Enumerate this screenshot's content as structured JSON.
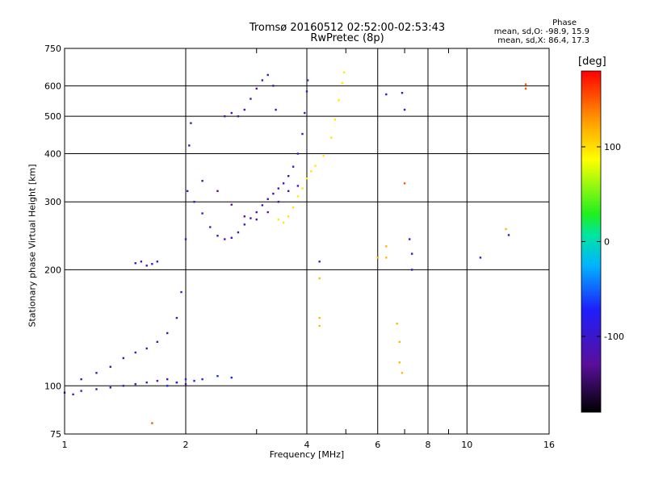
{
  "title": {
    "line1": "Tromsø 20160512 02:52:00-02:53:43",
    "line2": "RwPretec (8p)"
  },
  "phase_stats": {
    "heading": "Phase",
    "o_line": "mean, sd,O: -98.9, 15.9",
    "x_line": "mean, sd,X:  86.4, 17.3"
  },
  "chart_data": {
    "type": "scatter",
    "xlabel": "Frequency [MHz]",
    "ylabel": "Stationary phase Virtual Height [km]",
    "xscale": "log",
    "yscale": "log",
    "xlim": [
      1,
      16
    ],
    "ylim": [
      75,
      750
    ],
    "x_ticks": [
      1,
      2,
      4,
      6,
      8,
      10,
      16
    ],
    "x_tick_labels": [
      "1",
      "2",
      "4",
      "6",
      "8",
      "10",
      "16"
    ],
    "x_minor_ticks": [
      3,
      5,
      7,
      9
    ],
    "y_ticks": [
      75,
      100,
      200,
      300,
      400,
      500,
      600,
      750
    ],
    "y_tick_labels": [
      "75",
      "100",
      "200",
      "300",
      "400",
      "500",
      "600",
      "750"
    ],
    "grid": true,
    "colorbar": {
      "unit": "[deg]",
      "range": [
        -180,
        180
      ],
      "ticks": [
        100,
        0,
        -100
      ],
      "tick_labels": [
        "100",
        "0",
        "-100"
      ]
    },
    "traces": [
      {
        "name": "",
        "points": [
          [
            1.0,
            96
          ],
          [
            1.05,
            95
          ],
          [
            1.1,
            97
          ],
          [
            1.2,
            98
          ],
          [
            1.3,
            99
          ],
          [
            1.4,
            100
          ],
          [
            1.5,
            101
          ],
          [
            1.6,
            102
          ],
          [
            1.7,
            103
          ],
          [
            1.8,
            104
          ],
          [
            1.9,
            102
          ],
          [
            2.0,
            101
          ]
        ],
        "phase": -115
      },
      {
        "name": "",
        "points": [
          [
            1.1,
            104
          ],
          [
            1.2,
            108
          ],
          [
            1.3,
            112
          ],
          [
            1.4,
            118
          ],
          [
            1.5,
            122
          ],
          [
            1.6,
            125
          ],
          [
            1.7,
            130
          ],
          [
            1.8,
            137
          ],
          [
            1.9,
            150
          ],
          [
            1.95,
            175
          ],
          [
            2.0,
            240
          ],
          [
            2.02,
            320
          ],
          [
            2.04,
            420
          ],
          [
            2.06,
            480
          ]
        ],
        "phase": -110
      },
      {
        "name": "",
        "points": [
          [
            2.1,
            300
          ],
          [
            2.2,
            280
          ],
          [
            2.3,
            258
          ],
          [
            2.4,
            245
          ],
          [
            2.5,
            240
          ],
          [
            2.6,
            242
          ],
          [
            2.7,
            250
          ],
          [
            2.8,
            262
          ],
          [
            2.9,
            272
          ],
          [
            3.0,
            282
          ],
          [
            3.1,
            294
          ],
          [
            3.2,
            305
          ],
          [
            3.3,
            315
          ],
          [
            3.4,
            325
          ],
          [
            3.5,
            335
          ],
          [
            3.6,
            350
          ],
          [
            3.7,
            370
          ],
          [
            3.8,
            400
          ],
          [
            3.9,
            450
          ],
          [
            3.95,
            510
          ],
          [
            4.0,
            580
          ],
          [
            4.02,
            620
          ]
        ],
        "phase": -110
      },
      {
        "name": "",
        "points": [
          [
            2.2,
            340
          ],
          [
            2.4,
            320
          ],
          [
            2.6,
            295
          ],
          [
            2.8,
            275
          ],
          [
            3.0,
            270
          ],
          [
            3.2,
            282
          ],
          [
            3.4,
            300
          ],
          [
            3.6,
            320
          ],
          [
            3.8,
            330
          ]
        ],
        "phase": -125
      },
      {
        "name": "",
        "points": [
          [
            2.5,
            500
          ],
          [
            2.6,
            510
          ],
          [
            2.7,
            500
          ],
          [
            2.8,
            520
          ],
          [
            2.9,
            555
          ],
          [
            3.0,
            590
          ],
          [
            3.1,
            620
          ],
          [
            3.2,
            640
          ],
          [
            3.3,
            600
          ],
          [
            3.35,
            520
          ]
        ],
        "phase": -115
      },
      {
        "name": "",
        "points": [
          [
            3.4,
            270
          ],
          [
            3.5,
            265
          ],
          [
            3.6,
            275
          ],
          [
            3.7,
            290
          ],
          [
            3.8,
            310
          ],
          [
            3.9,
            325
          ],
          [
            4.0,
            345
          ],
          [
            4.1,
            360
          ],
          [
            4.2,
            372
          ],
          [
            4.4,
            395
          ],
          [
            4.6,
            440
          ],
          [
            4.7,
            490
          ],
          [
            4.8,
            550
          ],
          [
            4.9,
            610
          ],
          [
            4.95,
            650
          ]
        ],
        "phase": 95
      },
      {
        "name": "",
        "points": [
          [
            1.5,
            208
          ],
          [
            1.55,
            210
          ],
          [
            1.6,
            205
          ],
          [
            1.65,
            207
          ],
          [
            1.7,
            210
          ]
        ],
        "phase": -105
      },
      {
        "name": "",
        "points": [
          [
            1.8,
            100
          ],
          [
            1.9,
            102
          ],
          [
            2.0,
            104
          ],
          [
            2.1,
            103
          ],
          [
            2.2,
            104
          ],
          [
            2.4,
            106
          ],
          [
            2.6,
            105
          ]
        ],
        "phase": -70
      },
      {
        "name": "",
        "points": [
          [
            4.3,
            190
          ],
          [
            4.3,
            150
          ],
          [
            4.3,
            143
          ],
          [
            6.0,
            215
          ],
          [
            6.3,
            230
          ],
          [
            6.3,
            215
          ],
          [
            6.7,
            145
          ],
          [
            6.8,
            130
          ],
          [
            6.8,
            115
          ],
          [
            6.9,
            108
          ],
          [
            12.5,
            255
          ]
        ],
        "phase": 115
      },
      {
        "name": "",
        "points": [
          [
            6.3,
            570
          ],
          [
            6.9,
            575
          ],
          [
            7.0,
            520
          ],
          [
            7.2,
            240
          ],
          [
            7.3,
            220
          ],
          [
            7.3,
            200
          ],
          [
            4.3,
            210
          ],
          [
            10.8,
            215
          ],
          [
            12.7,
            246
          ]
        ],
        "phase": -110
      },
      {
        "name": "",
        "points": [
          [
            14.0,
            605
          ],
          [
            14.0,
            590
          ],
          [
            7.0,
            335
          ],
          [
            1.65,
            80
          ]
        ],
        "phase": 150
      }
    ]
  }
}
